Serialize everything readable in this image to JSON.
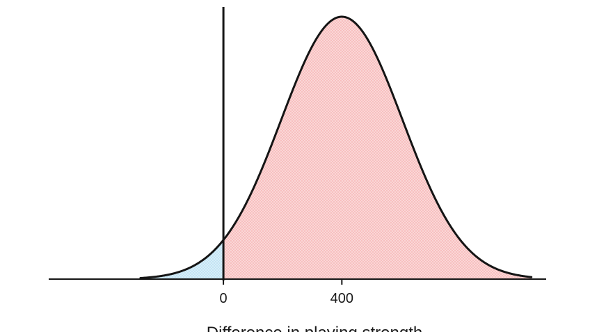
{
  "chart_data": {
    "type": "area",
    "title": "",
    "xlabel": "Difference in playing strength",
    "ylabel": "",
    "distribution": "normal",
    "mean": 400,
    "std_dev": 205,
    "xlim": [
      -590,
      1090
    ],
    "x_ticks": [
      {
        "value": 0,
        "label": "0"
      },
      {
        "value": 400,
        "label": "400"
      }
    ],
    "curve_range": [
      -280,
      1040
    ],
    "threshold": 0,
    "regions": [
      {
        "from": -280,
        "to": 0,
        "color": "#bfe3f4"
      },
      {
        "from": 0,
        "to": 1040,
        "color": "#f7bcbc"
      }
    ],
    "grid": false,
    "colors": {
      "curve": "#151515",
      "axis": "#151515",
      "left_region": "#bfe3f4",
      "right_region": "#f7bcbc"
    }
  }
}
